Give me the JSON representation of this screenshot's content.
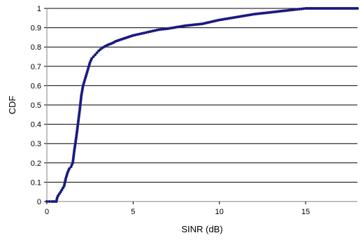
{
  "chart_data": {
    "type": "scatter",
    "xlabel": "SINR (dB)",
    "ylabel": "CDF",
    "xlim": [
      0,
      18
    ],
    "ylim": [
      0,
      1
    ],
    "x_ticks": [
      0,
      5,
      10,
      15
    ],
    "y_ticks": [
      0,
      0.1,
      0.2,
      0.3,
      0.4,
      0.5,
      0.6,
      0.7,
      0.8,
      0.9,
      1
    ],
    "grid": "horizontal",
    "legend": "none",
    "marker_color": "#1a1a80",
    "series": [
      {
        "x": [
          0.0,
          0.3,
          0.55,
          0.6,
          0.65,
          0.8,
          1.0,
          1.1,
          1.2,
          1.3,
          1.4,
          1.5,
          1.6,
          1.7,
          1.8,
          1.9,
          2.0,
          2.1,
          2.2,
          2.3,
          2.4,
          2.5,
          2.6,
          2.7,
          2.8,
          3.0,
          3.2,
          3.5,
          3.8,
          4.0,
          4.5,
          5.0,
          5.5,
          6.0,
          6.5,
          7.0,
          8.0,
          9.0,
          10.0,
          11.0,
          12.0,
          13.0,
          14.0,
          14.5,
          15.0,
          16.0,
          17.0,
          18.0
        ],
        "y": [
          0.0,
          0.0,
          0.0,
          0.02,
          0.03,
          0.05,
          0.08,
          0.12,
          0.15,
          0.17,
          0.18,
          0.2,
          0.27,
          0.33,
          0.4,
          0.47,
          0.55,
          0.6,
          0.63,
          0.66,
          0.69,
          0.72,
          0.74,
          0.75,
          0.76,
          0.78,
          0.795,
          0.81,
          0.82,
          0.83,
          0.845,
          0.86,
          0.87,
          0.88,
          0.89,
          0.895,
          0.91,
          0.92,
          0.94,
          0.955,
          0.97,
          0.98,
          0.99,
          0.995,
          1.0,
          1.0,
          1.0,
          1.0
        ]
      }
    ]
  }
}
